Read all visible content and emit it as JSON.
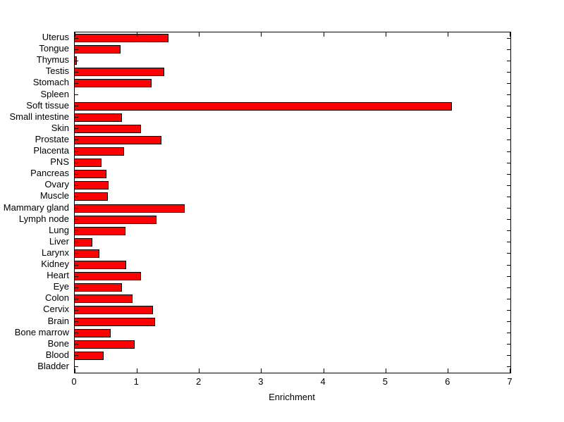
{
  "figure": {
    "background": "#ffffff"
  },
  "chart_data": {
    "type": "bar",
    "orientation": "horizontal",
    "title": "",
    "xlabel": "Enrichment",
    "ylabel": "",
    "categories": [
      "Uterus",
      "Tongue",
      "Thymus",
      "Testis",
      "Stomach",
      "Spleen",
      "Soft tissue",
      "Small intestine",
      "Skin",
      "Prostate",
      "Placenta",
      "PNS",
      "Pancreas",
      "Ovary",
      "Muscle",
      "Mammary gland",
      "Lymph node",
      "Lung",
      "Liver",
      "Larynx",
      "Kidney",
      "Heart",
      "Eye",
      "Colon",
      "Cervix",
      "Brain",
      "Bone marrow",
      "Bone",
      "Blood",
      "Bladder"
    ],
    "values": [
      1.5,
      0.72,
      0.02,
      1.43,
      1.22,
      0,
      6.05,
      0.75,
      1.05,
      1.38,
      0.78,
      0.42,
      0.5,
      0.53,
      0.52,
      1.75,
      1.3,
      0.8,
      0.27,
      0.38,
      0.82,
      1.05,
      0.75,
      0.92,
      1.25,
      1.28,
      0.57,
      0.95,
      0.45,
      0
    ],
    "xlim": [
      0,
      7
    ],
    "xticks": [
      0,
      1,
      2,
      3,
      4,
      5,
      6,
      7
    ],
    "bar_color": "#ff0000",
    "bar_edge_color": "#000000",
    "axis_color": "#000000",
    "grid": false,
    "legend": "none"
  }
}
